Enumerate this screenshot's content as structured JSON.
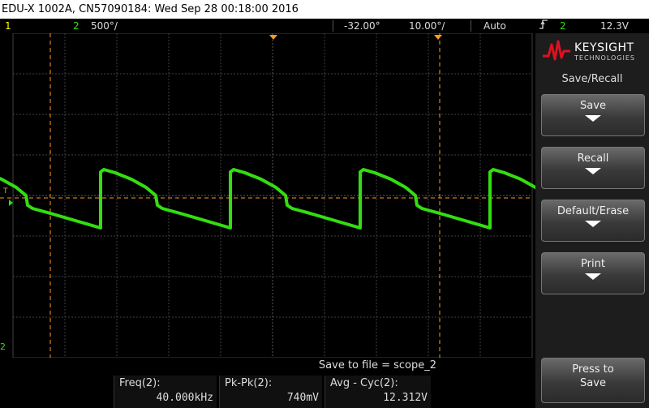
{
  "title_bar": {
    "text": "EDU-X 1002A, CN57090184: Wed Sep 28 00:18:00 2016"
  },
  "status_bar": {
    "ch1_number": "1",
    "ch2_number": "2",
    "ch2_scale": "500°/",
    "time_delay": "-32.00°",
    "timebase": "10.00°/",
    "trigger_mode": "Auto",
    "trigger_slope_icon": "rising-edge-icon",
    "trigger_source": "2",
    "trigger_level": "12.3V"
  },
  "screen": {
    "trigger_marker_label": "T",
    "ch2_ground_marker": "2"
  },
  "bottom": {
    "save_to_file": "Save to file = scope_2",
    "measurements": [
      {
        "label": "Freq(2):",
        "value": "40.000kHz"
      },
      {
        "label": "Pk-Pk(2):",
        "value": "740mV"
      },
      {
        "label": "Avg - Cyc(2):",
        "value": "12.312V"
      }
    ]
  },
  "sidebar": {
    "brand": "KEYSIGHT",
    "brand_sub": "TECHNOLOGIES",
    "menu_title": "Save/Recall",
    "softkeys": [
      {
        "label": "Save"
      },
      {
        "label": "Recall"
      },
      {
        "label": "Default/Erase"
      },
      {
        "label": "Print"
      }
    ],
    "press_to_save": {
      "line1": "Press to",
      "line2": "Save"
    }
  },
  "colors": {
    "ch1": "#ffff00",
    "ch2": "#33dd11",
    "cursor": "#ff9922",
    "grid": "#404040"
  }
}
